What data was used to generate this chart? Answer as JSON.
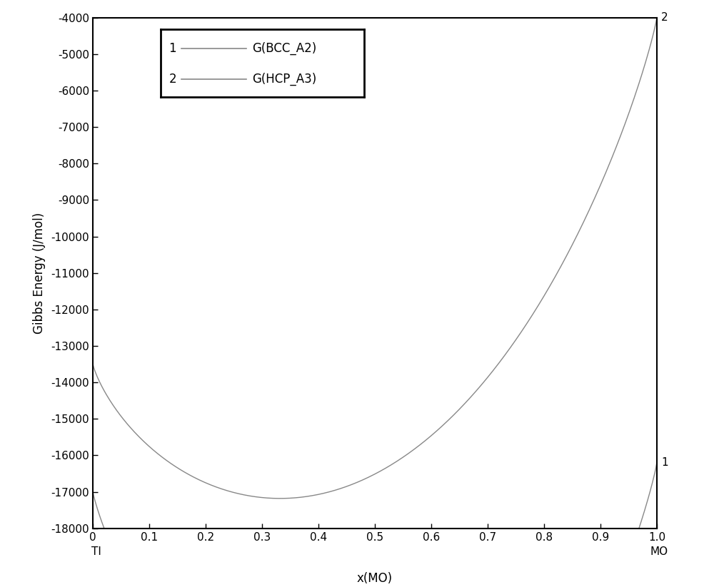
{
  "xlim": [
    0,
    1
  ],
  "ylim": [
    -18000,
    -4000
  ],
  "xlabel": "x(MO)",
  "ylabel": "Gibbs Energy (J/mol)",
  "xticks": [
    0,
    0.1,
    0.2,
    0.3,
    0.4,
    0.5,
    0.6,
    0.7,
    0.8,
    0.9,
    1.0
  ],
  "yticks": [
    -18000,
    -17000,
    -16000,
    -15000,
    -14000,
    -13000,
    -12000,
    -11000,
    -10000,
    -9000,
    -8000,
    -7000,
    -6000,
    -5000,
    -4000
  ],
  "xlabel_extra": [
    "TI",
    "MO"
  ],
  "legend_entries": [
    {
      "num": "1",
      "label": "G(BCC_A2)"
    },
    {
      "num": "2",
      "label": "G(HCP_A3)"
    }
  ],
  "line_color": "#888888",
  "background_color": "#ffffff",
  "num_points": 500,
  "R": 8.314,
  "T": 1000,
  "bcc_params": {
    "G_Ti": -17000,
    "G_Mo": -16200,
    "L0": -15000,
    "L1": 5000
  },
  "hcp_params": {
    "G_Ti": -13500,
    "G_Mo": -4000,
    "L0": -8000,
    "L1": 3000
  }
}
